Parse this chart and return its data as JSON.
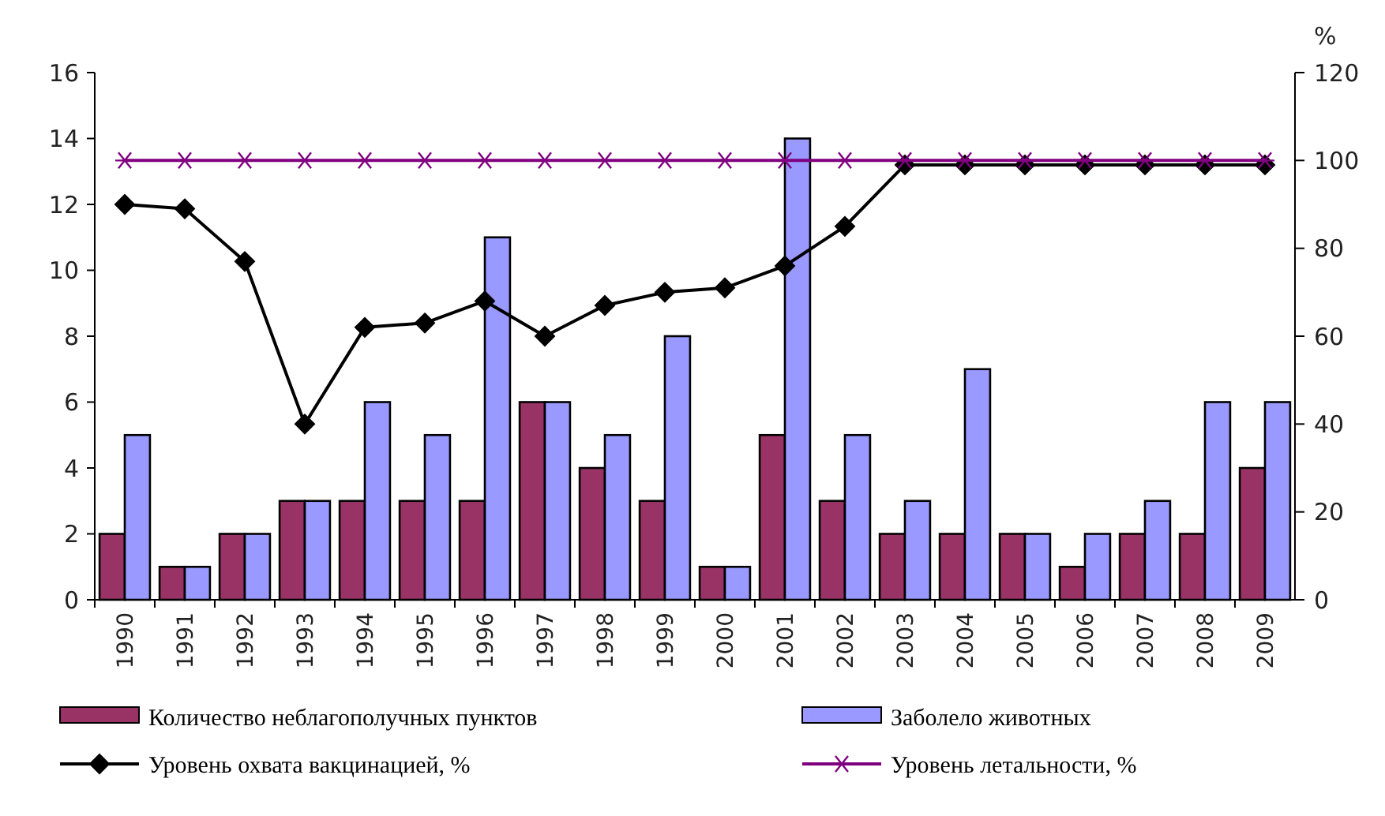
{
  "chart_data": {
    "type": "bar",
    "categories": [
      "1990",
      "1991",
      "1992",
      "1993",
      "1994",
      "1995",
      "1996",
      "1997",
      "1998",
      "1999",
      "2000",
      "2001",
      "2002",
      "2003",
      "2004",
      "2005",
      "2006",
      "2007",
      "2008",
      "2009"
    ],
    "series": [
      {
        "name": "Количество неблагополучных пунктов",
        "color": "#993366",
        "values": [
          2,
          1,
          2,
          3,
          3,
          3,
          3,
          6,
          4,
          3,
          1,
          5,
          3,
          2,
          2,
          2,
          1,
          2,
          2,
          4
        ]
      },
      {
        "name": "Заболело животных",
        "color": "#9999ff",
        "values": [
          5,
          1,
          2,
          3,
          6,
          5,
          11,
          6,
          5,
          8,
          1,
          14,
          5,
          3,
          7,
          2,
          2,
          3,
          6,
          6
        ]
      },
      {
        "name": "Уровень охвата вакцинацией, %",
        "type": "line",
        "axis": "y2",
        "color": "#000000",
        "marker": "diamond",
        "values": [
          90,
          89,
          77,
          40,
          62,
          63,
          68,
          60,
          67,
          70,
          71,
          76,
          85,
          99,
          99,
          99,
          99,
          99,
          99,
          99
        ]
      },
      {
        "name": "Уровень летальности, %",
        "type": "line",
        "axis": "y2",
        "color": "#800080",
        "marker": "cross",
        "values": [
          100,
          100,
          100,
          100,
          100,
          100,
          100,
          100,
          100,
          100,
          100,
          100,
          100,
          100,
          100,
          100,
          100,
          100,
          100,
          100
        ]
      }
    ],
    "ylim": [
      0,
      16
    ],
    "yticks": [
      0,
      2,
      4,
      6,
      8,
      10,
      12,
      14,
      16
    ],
    "y2lim": [
      0,
      120
    ],
    "y2ticks": [
      0,
      20,
      40,
      60,
      80,
      100,
      120
    ],
    "y2label": "%",
    "legend": "bottom",
    "grid": false
  }
}
